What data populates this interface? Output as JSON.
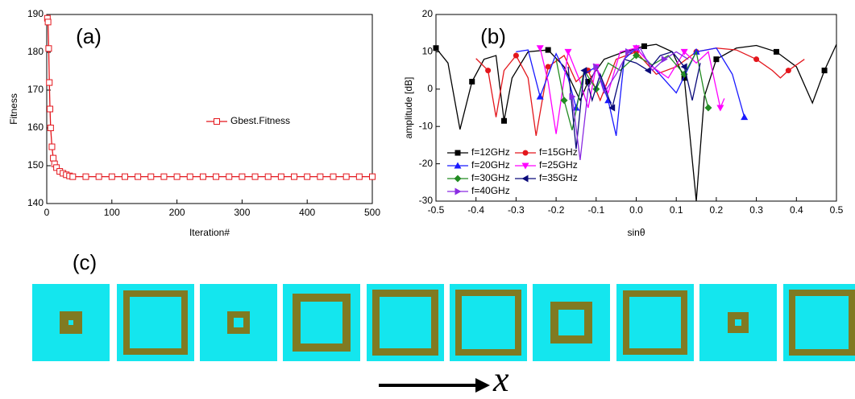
{
  "chart_data": [
    {
      "type": "line",
      "annotation": "(a)",
      "x_label": "Iteration#",
      "y_label": "Fitness",
      "xlim": [
        0,
        500
      ],
      "ylim": [
        140,
        190
      ],
      "xticks": [
        0,
        100,
        200,
        300,
        400,
        500
      ],
      "yticks": [
        140,
        150,
        160,
        170,
        180,
        190
      ],
      "legend": "center-right",
      "x": [
        1,
        2,
        3,
        4,
        5,
        6,
        8,
        10,
        12,
        15,
        20,
        25,
        30,
        35,
        40,
        60,
        80,
        100,
        120,
        140,
        160,
        180,
        200,
        220,
        240,
        260,
        280,
        300,
        320,
        340,
        360,
        380,
        400,
        420,
        440,
        460,
        480,
        500
      ],
      "series": [
        {
          "name": "Gbest.Fitness",
          "color": "#e3161c",
          "marker": "square-open",
          "values": [
            189,
            188,
            181,
            172,
            165,
            160,
            155,
            152,
            150.5,
            149.5,
            148.5,
            148,
            147.6,
            147.3,
            147.1,
            147.1,
            147.1,
            147.1,
            147.1,
            147.1,
            147.1,
            147.1,
            147.1,
            147.1,
            147.1,
            147.1,
            147.1,
            147.1,
            147.1,
            147.1,
            147.1,
            147.1,
            147.1,
            147.1,
            147.1,
            147.1,
            147.1,
            147.1
          ]
        }
      ]
    },
    {
      "type": "line",
      "annotation": "(b)",
      "x_label": "sinθ",
      "y_label": "amplitude [dB]",
      "xlim": [
        -0.5,
        0.5
      ],
      "ylim": [
        -30,
        20
      ],
      "xticks": [
        -0.5,
        -0.4,
        -0.3,
        -0.2,
        -0.1,
        {
          "value": 0,
          "label": "0.0"
        },
        0.1,
        0.2,
        0.3,
        0.4,
        0.5
      ],
      "yticks": [
        -30,
        -20,
        -10,
        0,
        10,
        20
      ],
      "legend": "lower-left",
      "series": [
        {
          "name": "f=12GHz",
          "color": "#000000",
          "marker": "square",
          "x": [
            -0.5,
            -0.47,
            -0.44,
            -0.41,
            -0.38,
            -0.35,
            -0.33,
            -0.31,
            -0.27,
            -0.22,
            -0.18,
            -0.14,
            -0.12,
            -0.08,
            -0.03,
            0.02,
            0.05,
            0.09,
            0.12,
            0.15,
            0.17,
            0.2,
            0.25,
            0.3,
            0.35,
            0.4,
            0.44,
            0.47,
            0.5
          ],
          "values": [
            11,
            7,
            -10.8,
            2,
            8,
            9,
            -8.5,
            3,
            10,
            10.5,
            6,
            -3,
            2,
            8,
            10,
            11.5,
            12,
            10,
            3,
            -30,
            -2,
            8,
            11,
            11.7,
            10,
            6,
            -3.7,
            5,
            12
          ]
        },
        {
          "name": "f=15GHz",
          "color": "#e3161c",
          "marker": "circle",
          "x": [
            -0.4,
            -0.37,
            -0.35,
            -0.33,
            -0.3,
            -0.27,
            -0.25,
            -0.22,
            -0.18,
            -0.15,
            -0.12,
            -0.09,
            -0.05,
            0,
            0.05,
            0.1,
            0.15,
            0.2,
            0.25,
            0.3,
            0.34,
            0.36,
            0.38,
            0.42
          ],
          "values": [
            8.2,
            5,
            -7.5,
            5,
            9,
            3,
            -12.5,
            6,
            9,
            2,
            5,
            -3,
            8,
            10,
            4,
            6,
            10,
            11,
            10.5,
            8,
            5,
            3,
            5,
            8
          ]
        },
        {
          "name": "f=20GHz",
          "color": "#1a1aff",
          "marker": "triangle-up",
          "x": [
            -0.3,
            -0.27,
            -0.24,
            -0.2,
            -0.17,
            -0.15,
            -0.13,
            -0.1,
            -0.07,
            -0.05,
            -0.03,
            0,
            0.05,
            0.1,
            0.15,
            0.2,
            0.24,
            0.27
          ],
          "values": [
            10,
            10.5,
            -2,
            9.5,
            3,
            -5,
            4,
            6,
            -3,
            -12.5,
            8,
            11,
            5,
            -1,
            10,
            11,
            4,
            -7.5
          ]
        },
        {
          "name": "f=25GHz",
          "color": "#ff00ff",
          "marker": "triangle-down",
          "x": [
            -0.24,
            -0.22,
            -0.2,
            -0.17,
            -0.14,
            -0.12,
            -0.1,
            -0.07,
            -0.04,
            0,
            0.04,
            0.08,
            0.12,
            0.15,
            0.18,
            0.21,
            0.22
          ],
          "values": [
            11,
            2,
            -12,
            10,
            2,
            -5,
            6,
            -1,
            10,
            11,
            6,
            3,
            10,
            7,
            10,
            -5,
            -2.5
          ]
        },
        {
          "name": "f=30GHz",
          "color": "#228b22",
          "marker": "diamond",
          "x": [
            -0.2,
            -0.18,
            -0.16,
            -0.13,
            -0.1,
            -0.07,
            -0.04,
            0,
            0.04,
            0.08,
            0.12,
            0.15,
            0.17,
            0.18
          ],
          "values": [
            8,
            -3,
            -11,
            5,
            0,
            7,
            5,
            9,
            6.5,
            9,
            4,
            10,
            -1,
            -5
          ]
        },
        {
          "name": "f=35GHz",
          "color": "#0a0a7a",
          "marker": "triangle-left",
          "x": [
            -0.17,
            -0.15,
            -0.13,
            -0.11,
            -0.09,
            -0.06,
            -0.03,
            0,
            0.03,
            0.06,
            0.09,
            0.12,
            0.14,
            0.16
          ],
          "values": [
            6,
            -16,
            5,
            -3,
            4,
            -5,
            8,
            7,
            5,
            9,
            10,
            6,
            -3,
            7
          ]
        },
        {
          "name": "f=40GHz",
          "color": "#8a2be2",
          "marker": "triangle-right",
          "x": [
            -0.16,
            -0.14,
            -0.12,
            -0.1,
            -0.08,
            -0.05,
            -0.02,
            0.01,
            0.04,
            0.07,
            0.1,
            0.13
          ],
          "values": [
            -2,
            -19,
            0,
            6,
            -1,
            4,
            10,
            11,
            5,
            8,
            10,
            8
          ]
        }
      ]
    }
  ],
  "diagram": {
    "label": "(c)",
    "axis_label": "x"
  }
}
